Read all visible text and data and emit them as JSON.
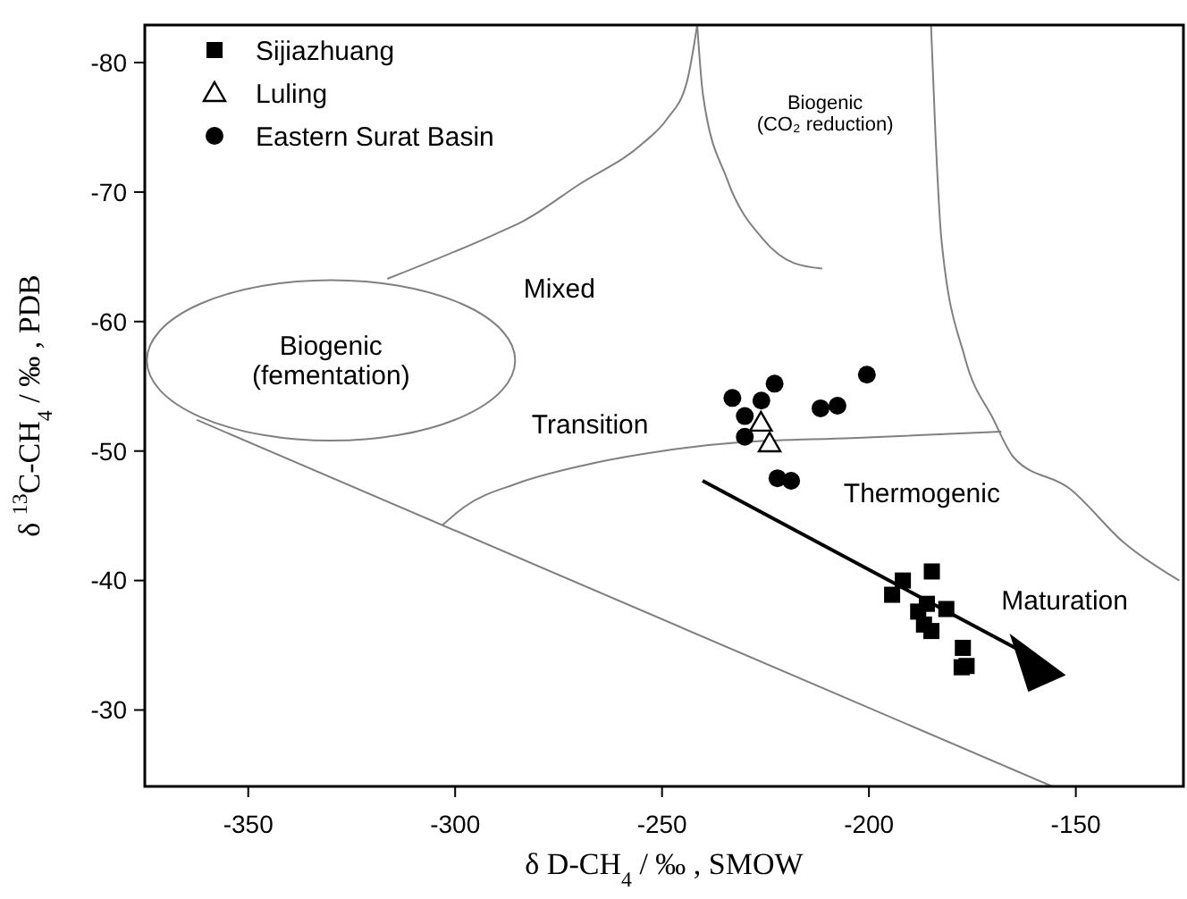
{
  "chart_data": {
    "type": "scatter",
    "xlabel": "δ D-CH$_{4}$ / ‰ , SMOW",
    "ylabel": "δ $^{13}$C-CH$_{4}$ / ‰ , PDB",
    "xlim": [
      -375,
      -124
    ],
    "xticks": [
      -350,
      -300,
      -250,
      -200,
      -150
    ],
    "ylim": [
      -24.1,
      -82.9
    ],
    "yticks": [
      -80,
      -70,
      -60,
      -50,
      -40,
      -30
    ],
    "grid": false,
    "legend": "top left",
    "series": [
      {
        "name": "Sijiazhuang",
        "color": "#000000",
        "marker": "square",
        "x": [
          -191.8,
          -184.8,
          -194.4,
          -186.0,
          -188.1,
          -181.3,
          -186.7,
          -184.9,
          -177.3,
          -177.6,
          -176.4
        ],
        "values": [
          -40.0,
          -40.7,
          -38.9,
          -38.2,
          -37.6,
          -37.8,
          -36.6,
          -36.1,
          -34.8,
          -33.3,
          -33.4
        ]
      },
      {
        "name": "Luling",
        "color": "#000000",
        "marker": "triangle",
        "x": [
          -226.1,
          -224.0
        ],
        "values": [
          -52.2,
          -50.6
        ]
      },
      {
        "name": "Eastern Surat Basin",
        "color": "#000000",
        "marker": "circle",
        "x": [
          -233.0,
          -222.8,
          -226.0,
          -230.0,
          -230.0,
          -211.7,
          -207.6,
          -200.5,
          -222.1,
          -218.8
        ],
        "values": [
          -54.1,
          -55.2,
          -53.9,
          -52.7,
          -51.1,
          -53.3,
          -53.5,
          -55.9,
          -47.9,
          -47.7
        ]
      },
      {
        "type": "line",
        "color": "#808080",
        "marker": "none",
        "x": [
          -316.4,
          -290,
          -283.3,
          -270,
          -254.5,
          -248.9,
          -244,
          -241.5
        ],
        "values": [
          -63.3,
          -66.8,
          -67.8,
          -70.6,
          -73.8,
          -75.6,
          -78.5,
          -82.9
        ]
      },
      {
        "type": "line",
        "color": "#808080",
        "marker": "none",
        "x": [
          -241.5,
          -240.1,
          -234.3,
          -225.7,
          -218,
          -211.3
        ],
        "values": [
          -82.9,
          -77.5,
          -71,
          -66.4,
          -64.5,
          -64.1
        ]
      },
      {
        "type": "line",
        "color": "#808080",
        "marker": "none",
        "x": [
          -185,
          -184,
          -182.5,
          -176.8,
          -170,
          -165,
          -151.5,
          -138.3,
          -125
        ],
        "values": [
          -82.9,
          -75,
          -66.4,
          -57.2,
          -52.5,
          -49.5,
          -47.1,
          -42.9,
          -40
        ]
      },
      {
        "type": "line",
        "color": "#808080",
        "marker": "none",
        "x": [
          -303,
          -297.7,
          -285,
          -268.9,
          -250,
          -230,
          -204.1,
          -168
        ],
        "values": [
          -44.3,
          -45.7,
          -47.5,
          -48.9,
          -50,
          -50.7,
          -51,
          -51.5
        ]
      },
      {
        "type": "line",
        "color": "#808080",
        "marker": "none",
        "x": [
          -362.4,
          -155.7
        ],
        "values": [
          -52.4,
          -24.1
        ]
      }
    ],
    "annotations": [
      "Biogenic\n(fementation)",
      "Mixed",
      "Transition",
      "Thermogenic",
      "Maturation",
      "Biogenic\n(CO₂ reduction)"
    ]
  }
}
